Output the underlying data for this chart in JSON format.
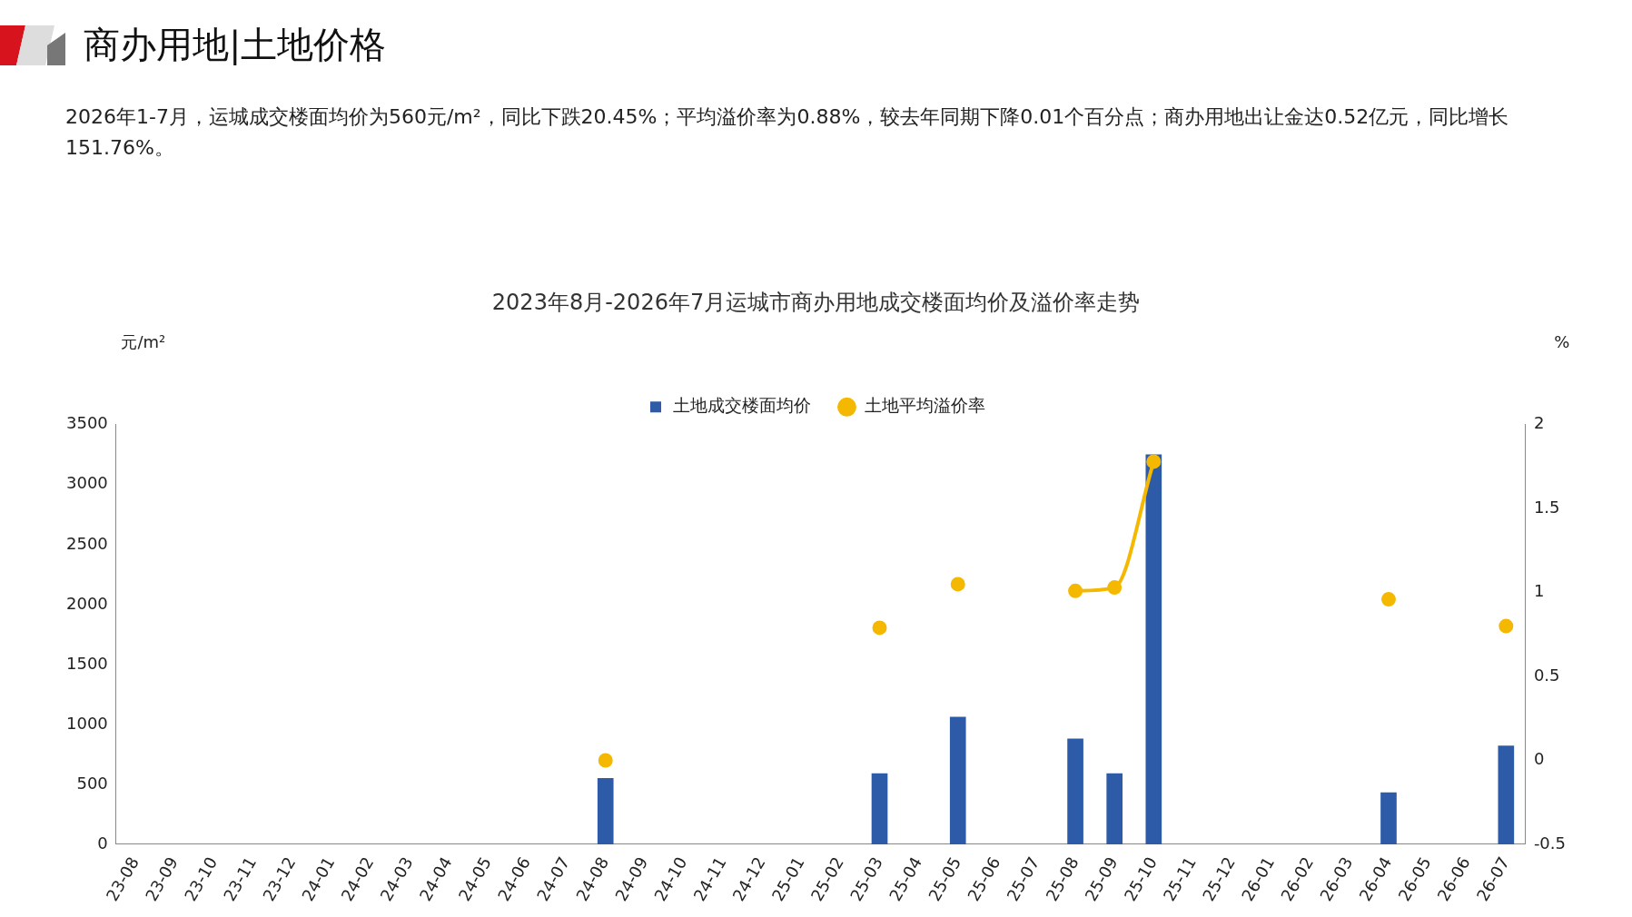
{
  "chart_data": {
    "type": "bar",
    "title": "2023年8月-2026年7月运城市商办用地成交楼面均价及溢价率走势",
    "annotations": [
      "商办用地|土地价格",
      "2026年1-7月，运城成交楼面均价为560元/m²，同比下跌20.45%；平均溢价率为0.88%，较去年同期下降0.01个百分点；商办用地出让金达0.52亿元，同比增长151.76%。"
    ],
    "ylabel": "元/m²",
    "y2label": "%",
    "categories": [
      "23-08",
      "23-09",
      "23-10",
      "23-11",
      "23-12",
      "24-01",
      "24-02",
      "24-03",
      "24-04",
      "24-05",
      "24-06",
      "24-07",
      "24-08",
      "24-09",
      "24-10",
      "24-11",
      "24-12",
      "25-01",
      "25-02",
      "25-03",
      "25-04",
      "25-05",
      "25-06",
      "25-07",
      "25-08",
      "25-09",
      "25-10",
      "25-11",
      "25-12",
      "26-01",
      "26-02",
      "26-03",
      "26-04",
      "26-05",
      "26-06",
      "26-07"
    ],
    "series": [
      {
        "name": "土地成交楼面均价",
        "color": "#2e5ba8",
        "values": [
          null,
          null,
          null,
          null,
          null,
          null,
          null,
          null,
          null,
          null,
          null,
          null,
          550,
          null,
          null,
          null,
          null,
          null,
          null,
          590,
          null,
          1060,
          null,
          null,
          880,
          590,
          3250,
          null,
          null,
          null,
          null,
          null,
          430,
          null,
          null,
          820
        ]
      },
      {
        "name": "土地平均溢价率",
        "type": "line",
        "axis": "y2",
        "color": "#f5b800",
        "values": [
          null,
          null,
          null,
          null,
          null,
          null,
          null,
          null,
          null,
          null,
          null,
          null,
          0,
          null,
          null,
          null,
          null,
          null,
          null,
          0.79,
          null,
          1.05,
          null,
          null,
          1.01,
          1.03,
          1.78,
          null,
          null,
          null,
          null,
          null,
          0.96,
          null,
          null,
          0.8
        ]
      }
    ],
    "ylim": [
      0,
      3500
    ],
    "yticks": [
      0,
      500,
      1000,
      1500,
      2000,
      2500,
      3000,
      3500
    ],
    "y2lim": [
      -0.5,
      2
    ],
    "y2ticks": [
      -0.5,
      0,
      0.5,
      1,
      1.5,
      2
    ],
    "legend": "top",
    "grid": false,
    "marker": "circle"
  }
}
